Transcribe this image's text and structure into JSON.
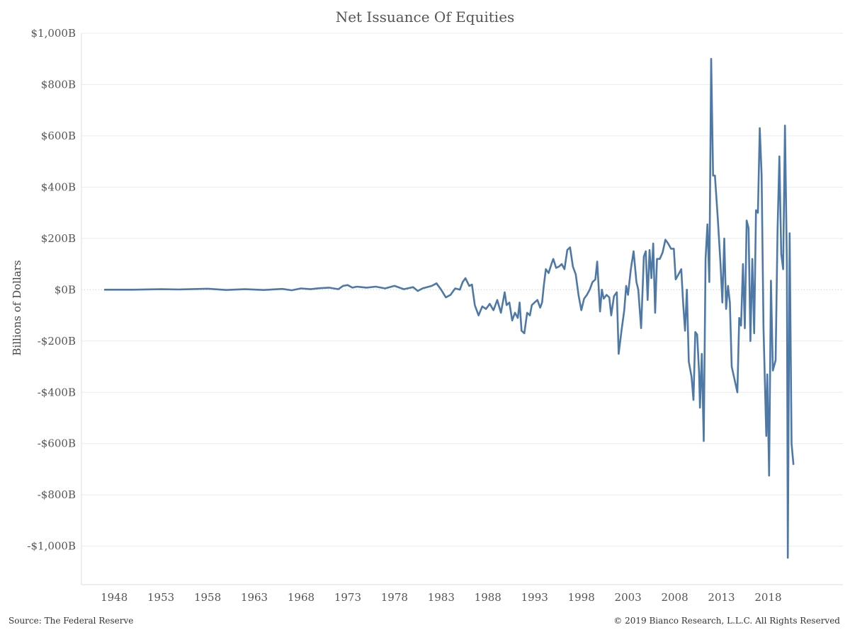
{
  "chart_data": {
    "type": "line",
    "title": "Net Issuance Of Equities",
    "xlabel": "",
    "ylabel": "Billions of Dollars",
    "xlim": [
      1944.5,
      2026
    ],
    "ylim": [
      -1150,
      1000
    ],
    "grid": true,
    "x_ticks": [
      1948,
      1953,
      1958,
      1963,
      1968,
      1973,
      1978,
      1983,
      1988,
      1993,
      1998,
      2003,
      2008,
      2013,
      2018
    ],
    "x_tick_labels": [
      "1948",
      "1953",
      "1958",
      "1963",
      "1968",
      "1973",
      "1978",
      "1983",
      "1988",
      "1993",
      "1998",
      "2003",
      "2008",
      "2013",
      "2018"
    ],
    "y_ticks": [
      1000,
      800,
      600,
      400,
      200,
      0,
      -200,
      -400,
      -600,
      -800,
      -1000
    ],
    "y_tick_labels": [
      "$1,000B",
      "$800B",
      "$600B",
      "$400B",
      "$200B",
      "$0B",
      "-$200B",
      "-$400B",
      "-$600B",
      "-$800B",
      "-$1,000B"
    ],
    "series": [
      {
        "color": "#4e79a7",
        "points": [
          [
            1947.0,
            0
          ],
          [
            1950.0,
            0
          ],
          [
            1953.0,
            2
          ],
          [
            1955.0,
            1
          ],
          [
            1958.0,
            4
          ],
          [
            1960.0,
            -1
          ],
          [
            1962.0,
            2
          ],
          [
            1964.0,
            -1
          ],
          [
            1966.0,
            3
          ],
          [
            1967.0,
            -2
          ],
          [
            1968.0,
            5
          ],
          [
            1969.0,
            2
          ],
          [
            1970.0,
            6
          ],
          [
            1971.0,
            8
          ],
          [
            1972.0,
            2
          ],
          [
            1972.5,
            15
          ],
          [
            1973.0,
            18
          ],
          [
            1973.5,
            8
          ],
          [
            1974.0,
            12
          ],
          [
            1975.0,
            8
          ],
          [
            1976.0,
            12
          ],
          [
            1977.0,
            5
          ],
          [
            1978.0,
            15
          ],
          [
            1979.0,
            2
          ],
          [
            1980.0,
            10
          ],
          [
            1980.5,
            -5
          ],
          [
            1981.0,
            5
          ],
          [
            1982.0,
            15
          ],
          [
            1982.5,
            25
          ],
          [
            1983.0,
            0
          ],
          [
            1983.5,
            -30
          ],
          [
            1984.0,
            -20
          ],
          [
            1984.5,
            5
          ],
          [
            1985.0,
            0
          ],
          [
            1985.3,
            30
          ],
          [
            1985.6,
            45
          ],
          [
            1986.0,
            15
          ],
          [
            1986.3,
            20
          ],
          [
            1986.6,
            -60
          ],
          [
            1987.0,
            -100
          ],
          [
            1987.4,
            -65
          ],
          [
            1987.8,
            -75
          ],
          [
            1988.2,
            -55
          ],
          [
            1988.6,
            -80
          ],
          [
            1989.0,
            -40
          ],
          [
            1989.4,
            -90
          ],
          [
            1989.8,
            -10
          ],
          [
            1990.0,
            -60
          ],
          [
            1990.3,
            -50
          ],
          [
            1990.6,
            -120
          ],
          [
            1990.9,
            -90
          ],
          [
            1991.2,
            -110
          ],
          [
            1991.4,
            -50
          ],
          [
            1991.6,
            -160
          ],
          [
            1991.9,
            -170
          ],
          [
            1992.2,
            -90
          ],
          [
            1992.5,
            -100
          ],
          [
            1992.7,
            -60
          ],
          [
            1993.0,
            -50
          ],
          [
            1993.3,
            -40
          ],
          [
            1993.6,
            -70
          ],
          [
            1993.8,
            -50
          ],
          [
            1994.0,
            20
          ],
          [
            1994.2,
            80
          ],
          [
            1994.5,
            65
          ],
          [
            1994.8,
            100
          ],
          [
            1995.0,
            120
          ],
          [
            1995.3,
            85
          ],
          [
            1995.6,
            90
          ],
          [
            1995.9,
            100
          ],
          [
            1996.2,
            80
          ],
          [
            1996.5,
            155
          ],
          [
            1996.8,
            165
          ],
          [
            1997.1,
            90
          ],
          [
            1997.4,
            60
          ],
          [
            1997.7,
            -20
          ],
          [
            1998.0,
            -80
          ],
          [
            1998.3,
            -35
          ],
          [
            1998.6,
            -20
          ],
          [
            1998.9,
            0
          ],
          [
            1999.2,
            30
          ],
          [
            1999.5,
            40
          ],
          [
            1999.7,
            110
          ],
          [
            2000.0,
            -85
          ],
          [
            2000.2,
            0
          ],
          [
            2000.4,
            -35
          ],
          [
            2000.7,
            -20
          ],
          [
            2001.0,
            -30
          ],
          [
            2001.2,
            -100
          ],
          [
            2001.5,
            -25
          ],
          [
            2001.8,
            -10
          ],
          [
            2002.0,
            -250
          ],
          [
            2002.3,
            -160
          ],
          [
            2002.6,
            -80
          ],
          [
            2002.8,
            15
          ],
          [
            2003.0,
            -20
          ],
          [
            2003.3,
            80
          ],
          [
            2003.6,
            150
          ],
          [
            2003.9,
            30
          ],
          [
            2004.1,
            0
          ],
          [
            2004.4,
            -150
          ],
          [
            2004.7,
            130
          ],
          [
            2004.9,
            150
          ],
          [
            2005.1,
            -40
          ],
          [
            2005.3,
            155
          ],
          [
            2005.5,
            45
          ],
          [
            2005.7,
            180
          ],
          [
            2005.9,
            -90
          ],
          [
            2006.1,
            120
          ],
          [
            2006.4,
            120
          ],
          [
            2006.7,
            145
          ],
          [
            2007.0,
            195
          ],
          [
            2007.3,
            180
          ],
          [
            2007.6,
            160
          ],
          [
            2007.9,
            160
          ],
          [
            2008.1,
            40
          ],
          [
            2008.4,
            60
          ],
          [
            2008.7,
            80
          ],
          [
            2008.9,
            -50
          ],
          [
            2009.1,
            -160
          ],
          [
            2009.3,
            0
          ],
          [
            2009.5,
            -280
          ],
          [
            2009.8,
            -340
          ],
          [
            2010.0,
            -430
          ],
          [
            2010.2,
            -165
          ],
          [
            2010.4,
            -175
          ],
          [
            2010.6,
            -320
          ],
          [
            2010.7,
            -460
          ],
          [
            2010.9,
            -250
          ],
          [
            2011.1,
            -590
          ],
          [
            2011.3,
            120
          ],
          [
            2011.5,
            255
          ],
          [
            2011.7,
            30
          ],
          [
            2011.9,
            900
          ],
          [
            2012.1,
            445
          ],
          [
            2012.3,
            445
          ],
          [
            2012.6,
            280
          ],
          [
            2012.9,
            100
          ],
          [
            2013.1,
            -50
          ],
          [
            2013.3,
            200
          ],
          [
            2013.5,
            -75
          ],
          [
            2013.7,
            15
          ],
          [
            2013.9,
            -50
          ],
          [
            2014.1,
            -300
          ],
          [
            2014.4,
            -350
          ],
          [
            2014.7,
            -400
          ],
          [
            2014.9,
            -110
          ],
          [
            2015.1,
            -140
          ],
          [
            2015.3,
            100
          ],
          [
            2015.5,
            -150
          ],
          [
            2015.7,
            270
          ],
          [
            2015.9,
            240
          ],
          [
            2016.1,
            -200
          ],
          [
            2016.3,
            120
          ],
          [
            2016.5,
            -170
          ],
          [
            2016.7,
            310
          ],
          [
            2016.9,
            300
          ],
          [
            2017.1,
            630
          ],
          [
            2017.3,
            450
          ],
          [
            2017.5,
            -150
          ],
          [
            2017.8,
            -570
          ],
          [
            2017.9,
            -330
          ],
          [
            2018.1,
            -725
          ],
          [
            2018.3,
            35
          ],
          [
            2018.5,
            -315
          ],
          [
            2018.8,
            -275
          ],
          [
            2019.0,
            230
          ],
          [
            2019.2,
            520
          ],
          [
            2019.4,
            140
          ],
          [
            2019.6,
            80
          ],
          [
            2019.8,
            640
          ],
          [
            2020.0,
            100
          ],
          [
            2020.1,
            -1045
          ],
          [
            2020.3,
            220
          ],
          [
            2020.5,
            -600
          ],
          [
            2020.7,
            -680
          ]
        ]
      }
    ]
  },
  "footer": {
    "source": "Source: The Federal Reserve",
    "copyright": "© 2019 Bianco Research, L.L.C. All Rights Reserved"
  }
}
